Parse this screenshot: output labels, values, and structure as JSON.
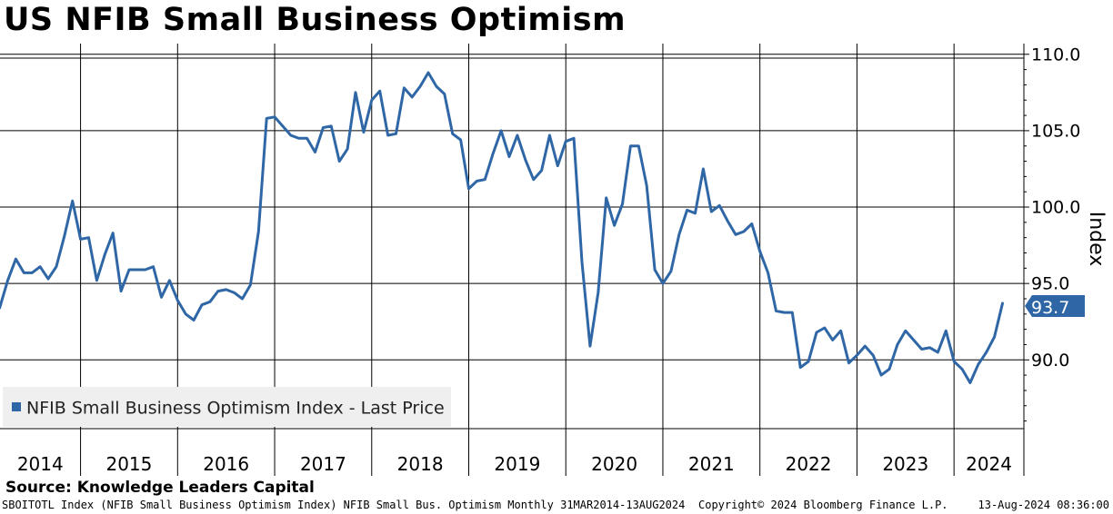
{
  "chart_data": {
    "type": "line",
    "title": "US NFIB Small Business Optimism",
    "ylabel": "Index",
    "ylim": [
      85.5,
      110.7
    ],
    "yticks": [
      90,
      95,
      100,
      105,
      110
    ],
    "ytick_labels": [
      "90.0",
      "95.0",
      "100.0",
      "105.0",
      "110.0"
    ],
    "xlim": [
      2014.17,
      2024.72
    ],
    "x_categories": [
      "2014",
      "2015",
      "2016",
      "2017",
      "2018",
      "2019",
      "2020",
      "2021",
      "2022",
      "2023",
      "2024"
    ],
    "last_value_label": "93.7",
    "series": [
      {
        "name": "NFIB Small Business Optimism Index - Last Price",
        "color": "#2f67a6",
        "start": "2014-03",
        "frequency": "monthly",
        "values": [
          93.4,
          95.2,
          96.6,
          95.7,
          95.7,
          96.1,
          95.3,
          96.1,
          98.1,
          100.4,
          97.9,
          98.0,
          95.2,
          96.9,
          98.3,
          94.5,
          95.9,
          95.9,
          95.9,
          96.1,
          94.1,
          95.2,
          93.9,
          93.0,
          92.6,
          93.6,
          93.8,
          94.5,
          94.6,
          94.4,
          94.0,
          94.9,
          98.4,
          105.8,
          105.9,
          105.3,
          104.7,
          104.5,
          104.5,
          103.6,
          105.2,
          105.3,
          103.0,
          103.8,
          107.5,
          104.9,
          107.0,
          107.6,
          104.7,
          104.8,
          107.8,
          107.2,
          107.9,
          108.8,
          107.9,
          107.4,
          104.8,
          104.4,
          101.2,
          101.7,
          101.8,
          103.5,
          105.0,
          103.3,
          104.7,
          103.1,
          101.8,
          102.4,
          104.7,
          102.7,
          104.3,
          104.5,
          96.4,
          90.9,
          94.4,
          100.6,
          98.8,
          100.2,
          104.0,
          104.0,
          101.4,
          95.9,
          95.0,
          95.8,
          98.2,
          99.8,
          99.6,
          102.5,
          99.7,
          100.1,
          99.1,
          98.2,
          98.4,
          98.9,
          97.1,
          95.7,
          93.2,
          93.1,
          93.1,
          89.5,
          89.9,
          91.8,
          92.1,
          91.3,
          91.9,
          89.8,
          90.3,
          90.9,
          90.3,
          89.0,
          89.4,
          91.0,
          91.9,
          91.3,
          90.7,
          90.8,
          90.5,
          91.9,
          89.9,
          89.4,
          88.5,
          89.7,
          90.5,
          91.5,
          93.7
        ]
      }
    ]
  },
  "source": "Source: Knowledge Leaders Capital",
  "footer": {
    "left": "SBOITOTL Index (NFIB Small Business Optimism Index) NFIB Small Bus. Optimism  Monthly 31MAR2014-13AUG2024",
    "middle": "Copyright© 2024 Bloomberg Finance L.P.",
    "right": "13-Aug-2024 08:36:00"
  },
  "colors": {
    "line": "#2f67a6",
    "last_price_tag": "#2f67a6",
    "legend_bg": "#efefef",
    "grid": "#000000"
  }
}
